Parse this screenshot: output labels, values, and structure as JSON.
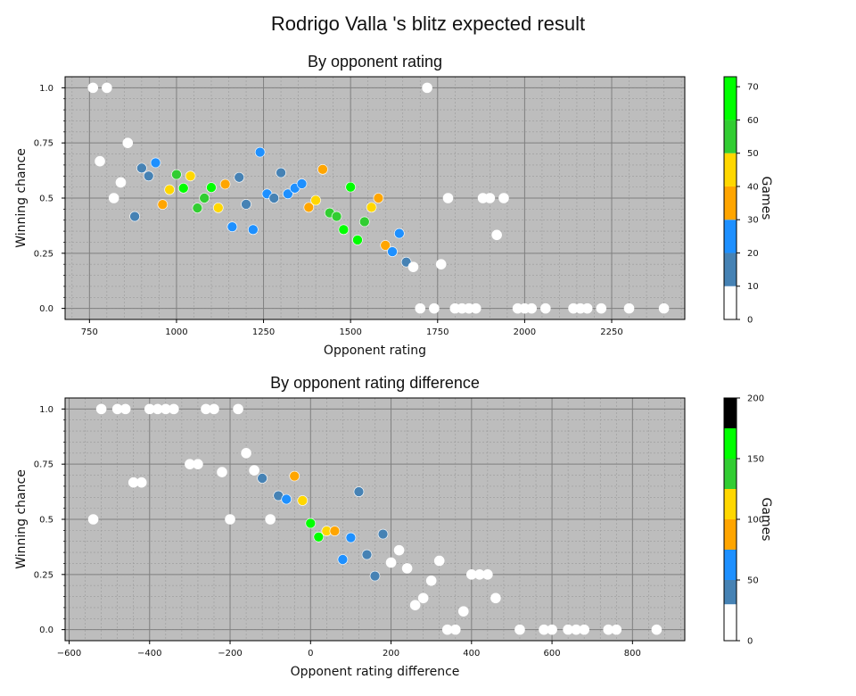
{
  "title": "Rodrigo Valla 's blitz expected result",
  "colors": {
    "plot_bg": "#bdbdbd",
    "major_grid": "#808080",
    "minor_grid": "#9a9a9a",
    "point_edge": "#ffffff"
  },
  "color_scale": [
    "#ffffff",
    "#4682b4",
    "#1e90ff",
    "#ffa500",
    "#ffd700",
    "#32cd32",
    "#00ff00"
  ],
  "chart_data": [
    {
      "type": "scatter",
      "title": "By opponent rating",
      "xlabel": "Opponent rating",
      "ylabel": "Winning chance",
      "xlim": [
        680,
        2460
      ],
      "ylim": [
        -0.05,
        1.05
      ],
      "xticks": [
        750,
        1000,
        1250,
        1500,
        1750,
        2000,
        2250
      ],
      "xtick_labels": [
        "750",
        "1000",
        "1250",
        "1500",
        "1750",
        "2000",
        "2250"
      ],
      "yticks": [
        0,
        0.25,
        0.5,
        0.75,
        1.0
      ],
      "ytick_labels": [
        "0.0",
        "0.25",
        "0.5",
        "0.75",
        "1.0"
      ],
      "grid": true,
      "colorbar": {
        "label": "Games",
        "range": [
          0,
          73
        ],
        "boundaries": [
          0,
          10,
          20,
          30,
          40,
          50,
          60,
          73
        ],
        "ticks": [
          0,
          10,
          20,
          30,
          40,
          50,
          60,
          70
        ],
        "tick_labels": [
          "0",
          "10",
          "20",
          "30",
          "40",
          "50",
          "60",
          "70"
        ]
      },
      "points": [
        {
          "x": 760,
          "y": 1.0,
          "c": 0
        },
        {
          "x": 800,
          "y": 1.0,
          "c": 0
        },
        {
          "x": 780,
          "y": 0.667,
          "c": 0
        },
        {
          "x": 820,
          "y": 0.5,
          "c": 0
        },
        {
          "x": 840,
          "y": 0.571,
          "c": 0
        },
        {
          "x": 860,
          "y": 0.75,
          "c": 0
        },
        {
          "x": 880,
          "y": 0.417,
          "c": 1
        },
        {
          "x": 900,
          "y": 0.636,
          "c": 1
        },
        {
          "x": 920,
          "y": 0.6,
          "c": 1
        },
        {
          "x": 940,
          "y": 0.66,
          "c": 2
        },
        {
          "x": 960,
          "y": 0.471,
          "c": 3
        },
        {
          "x": 980,
          "y": 0.538,
          "c": 4
        },
        {
          "x": 1000,
          "y": 0.607,
          "c": 5
        },
        {
          "x": 1020,
          "y": 0.545,
          "c": 6
        },
        {
          "x": 1040,
          "y": 0.6,
          "c": 4
        },
        {
          "x": 1060,
          "y": 0.455,
          "c": 5
        },
        {
          "x": 1080,
          "y": 0.5,
          "c": 5
        },
        {
          "x": 1100,
          "y": 0.548,
          "c": 6
        },
        {
          "x": 1120,
          "y": 0.456,
          "c": 4
        },
        {
          "x": 1140,
          "y": 0.563,
          "c": 3
        },
        {
          "x": 1160,
          "y": 0.37,
          "c": 2
        },
        {
          "x": 1180,
          "y": 0.594,
          "c": 1
        },
        {
          "x": 1200,
          "y": 0.472,
          "c": 1
        },
        {
          "x": 1220,
          "y": 0.357,
          "c": 2
        },
        {
          "x": 1240,
          "y": 0.708,
          "c": 2
        },
        {
          "x": 1260,
          "y": 0.519,
          "c": 2
        },
        {
          "x": 1280,
          "y": 0.5,
          "c": 1
        },
        {
          "x": 1300,
          "y": 0.615,
          "c": 1
        },
        {
          "x": 1320,
          "y": 0.519,
          "c": 2
        },
        {
          "x": 1340,
          "y": 0.545,
          "c": 2
        },
        {
          "x": 1360,
          "y": 0.565,
          "c": 2
        },
        {
          "x": 1380,
          "y": 0.458,
          "c": 3
        },
        {
          "x": 1400,
          "y": 0.49,
          "c": 4
        },
        {
          "x": 1420,
          "y": 0.63,
          "c": 3
        },
        {
          "x": 1440,
          "y": 0.433,
          "c": 5
        },
        {
          "x": 1460,
          "y": 0.417,
          "c": 5
        },
        {
          "x": 1480,
          "y": 0.357,
          "c": 6
        },
        {
          "x": 1500,
          "y": 0.55,
          "c": 6
        },
        {
          "x": 1520,
          "y": 0.31,
          "c": 6
        },
        {
          "x": 1540,
          "y": 0.393,
          "c": 5
        },
        {
          "x": 1560,
          "y": 0.458,
          "c": 4
        },
        {
          "x": 1580,
          "y": 0.5,
          "c": 3
        },
        {
          "x": 1600,
          "y": 0.286,
          "c": 3
        },
        {
          "x": 1620,
          "y": 0.257,
          "c": 2
        },
        {
          "x": 1640,
          "y": 0.34,
          "c": 2
        },
        {
          "x": 1660,
          "y": 0.21,
          "c": 1
        },
        {
          "x": 1680,
          "y": 0.188,
          "c": 0
        },
        {
          "x": 1700,
          "y": 0.0,
          "c": 0
        },
        {
          "x": 1720,
          "y": 1.0,
          "c": 0
        },
        {
          "x": 1740,
          "y": 0.0,
          "c": 0
        },
        {
          "x": 1760,
          "y": 0.2,
          "c": 0
        },
        {
          "x": 1780,
          "y": 0.5,
          "c": 0
        },
        {
          "x": 1800,
          "y": 0.0,
          "c": 0
        },
        {
          "x": 1820,
          "y": 0.0,
          "c": 0
        },
        {
          "x": 1840,
          "y": 0.0,
          "c": 0
        },
        {
          "x": 1860,
          "y": 0.0,
          "c": 0
        },
        {
          "x": 1880,
          "y": 0.5,
          "c": 0
        },
        {
          "x": 1900,
          "y": 0.5,
          "c": 0
        },
        {
          "x": 1920,
          "y": 0.333,
          "c": 0
        },
        {
          "x": 1940,
          "y": 0.5,
          "c": 0
        },
        {
          "x": 1980,
          "y": 0.0,
          "c": 0
        },
        {
          "x": 2000,
          "y": 0.0,
          "c": 0
        },
        {
          "x": 2020,
          "y": 0.0,
          "c": 0
        },
        {
          "x": 2060,
          "y": 0.0,
          "c": 0
        },
        {
          "x": 2140,
          "y": 0.0,
          "c": 0
        },
        {
          "x": 2160,
          "y": 0.0,
          "c": 0
        },
        {
          "x": 2180,
          "y": 0.0,
          "c": 0
        },
        {
          "x": 2220,
          "y": 0.0,
          "c": 0
        },
        {
          "x": 2300,
          "y": 0.0,
          "c": 0
        },
        {
          "x": 2400,
          "y": 0.0,
          "c": 0
        }
      ]
    },
    {
      "type": "scatter",
      "title": "By opponent rating difference",
      "xlabel": "Opponent rating difference",
      "ylabel": "Winning chance",
      "xlim": [
        -610,
        930
      ],
      "ylim": [
        -0.05,
        1.05
      ],
      "xticks": [
        -600,
        -400,
        -200,
        0,
        200,
        400,
        600,
        800
      ],
      "xtick_labels": [
        "−600",
        "−400",
        "−200",
        "0",
        "200",
        "400",
        "600",
        "800"
      ],
      "yticks": [
        0,
        0.25,
        0.5,
        0.75,
        1.0
      ],
      "ytick_labels": [
        "0.0",
        "0.25",
        "0.5",
        "0.75",
        "1.0"
      ],
      "grid": true,
      "colorbar": {
        "label": "Games",
        "range": [
          0,
          200
        ],
        "boundaries": [
          0,
          30,
          50,
          75,
          100,
          125,
          150,
          175,
          200
        ],
        "ticks": [
          0,
          50,
          100,
          150,
          200
        ],
        "tick_labels": [
          "0",
          "50",
          "100",
          "150",
          "200"
        ]
      },
      "points": [
        {
          "x": -540,
          "y": 0.5,
          "c": 0
        },
        {
          "x": -520,
          "y": 1.0,
          "c": 0
        },
        {
          "x": -480,
          "y": 1.0,
          "c": 0
        },
        {
          "x": -460,
          "y": 1.0,
          "c": 0
        },
        {
          "x": -440,
          "y": 0.667,
          "c": 0
        },
        {
          "x": -420,
          "y": 0.667,
          "c": 0
        },
        {
          "x": -400,
          "y": 1.0,
          "c": 0
        },
        {
          "x": -380,
          "y": 1.0,
          "c": 0
        },
        {
          "x": -360,
          "y": 1.0,
          "c": 0
        },
        {
          "x": -340,
          "y": 1.0,
          "c": 0
        },
        {
          "x": -300,
          "y": 0.75,
          "c": 0
        },
        {
          "x": -280,
          "y": 0.75,
          "c": 0
        },
        {
          "x": -260,
          "y": 1.0,
          "c": 0
        },
        {
          "x": -240,
          "y": 1.0,
          "c": 0
        },
        {
          "x": -220,
          "y": 0.714,
          "c": 0
        },
        {
          "x": -200,
          "y": 0.5,
          "c": 0
        },
        {
          "x": -180,
          "y": 1.0,
          "c": 0
        },
        {
          "x": -160,
          "y": 0.8,
          "c": 0
        },
        {
          "x": -140,
          "y": 0.722,
          "c": 0
        },
        {
          "x": -120,
          "y": 0.686,
          "c": 1
        },
        {
          "x": -100,
          "y": 0.5,
          "c": 0
        },
        {
          "x": -80,
          "y": 0.607,
          "c": 1
        },
        {
          "x": -60,
          "y": 0.591,
          "c": 2
        },
        {
          "x": -40,
          "y": 0.696,
          "c": 3
        },
        {
          "x": -20,
          "y": 0.585,
          "c": 4
        },
        {
          "x": 0,
          "y": 0.482,
          "c": 6
        },
        {
          "x": 20,
          "y": 0.42,
          "c": 6
        },
        {
          "x": 40,
          "y": 0.447,
          "c": 4
        },
        {
          "x": 60,
          "y": 0.447,
          "c": 3
        },
        {
          "x": 80,
          "y": 0.318,
          "c": 2
        },
        {
          "x": 100,
          "y": 0.417,
          "c": 2
        },
        {
          "x": 120,
          "y": 0.625,
          "c": 1
        },
        {
          "x": 140,
          "y": 0.34,
          "c": 1
        },
        {
          "x": 160,
          "y": 0.243,
          "c": 1
        },
        {
          "x": 180,
          "y": 0.433,
          "c": 1
        },
        {
          "x": 200,
          "y": 0.304,
          "c": 0
        },
        {
          "x": 220,
          "y": 0.36,
          "c": 0
        },
        {
          "x": 240,
          "y": 0.278,
          "c": 0
        },
        {
          "x": 260,
          "y": 0.111,
          "c": 0
        },
        {
          "x": 280,
          "y": 0.143,
          "c": 0
        },
        {
          "x": 300,
          "y": 0.222,
          "c": 0
        },
        {
          "x": 320,
          "y": 0.312,
          "c": 0
        },
        {
          "x": 340,
          "y": 0.0,
          "c": 0
        },
        {
          "x": 360,
          "y": 0.0,
          "c": 0
        },
        {
          "x": 380,
          "y": 0.083,
          "c": 0
        },
        {
          "x": 400,
          "y": 0.25,
          "c": 0
        },
        {
          "x": 420,
          "y": 0.25,
          "c": 0
        },
        {
          "x": 440,
          "y": 0.25,
          "c": 0
        },
        {
          "x": 460,
          "y": 0.143,
          "c": 0
        },
        {
          "x": 520,
          "y": 0.0,
          "c": 0
        },
        {
          "x": 580,
          "y": 0.0,
          "c": 0
        },
        {
          "x": 600,
          "y": 0.0,
          "c": 0
        },
        {
          "x": 640,
          "y": 0.0,
          "c": 0
        },
        {
          "x": 660,
          "y": 0.0,
          "c": 0
        },
        {
          "x": 680,
          "y": 0.0,
          "c": 0
        },
        {
          "x": 740,
          "y": 0.0,
          "c": 0
        },
        {
          "x": 760,
          "y": 0.0,
          "c": 0
        },
        {
          "x": 860,
          "y": 0.0,
          "c": 0
        }
      ]
    }
  ]
}
